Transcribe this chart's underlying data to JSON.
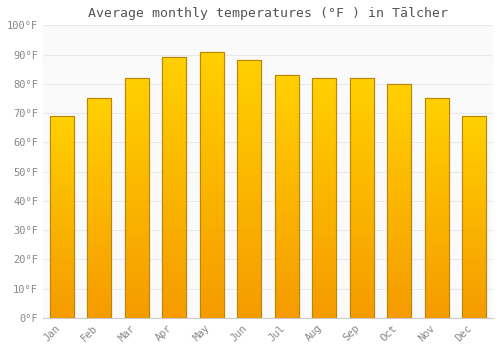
{
  "title": "Average monthly temperatures (°F ) in Tālcher",
  "months": [
    "Jan",
    "Feb",
    "Mar",
    "Apr",
    "May",
    "Jun",
    "Jul",
    "Aug",
    "Sep",
    "Oct",
    "Nov",
    "Dec"
  ],
  "values": [
    69,
    75,
    82,
    89,
    91,
    88,
    83,
    82,
    82,
    80,
    75,
    69
  ],
  "bar_color_top": "#FFD000",
  "bar_color_bottom": "#F59B00",
  "bar_edge_color": "#B8860B",
  "background_color": "#FFFFFF",
  "plot_bg_color": "#FAFAFA",
  "grid_color": "#E8E8F0",
  "yticks": [
    0,
    10,
    20,
    30,
    40,
    50,
    60,
    70,
    80,
    90,
    100
  ],
  "ylim": [
    0,
    100
  ],
  "tick_label_color": "#888888",
  "title_color": "#555555",
  "font_family": "monospace",
  "bar_width": 0.65
}
